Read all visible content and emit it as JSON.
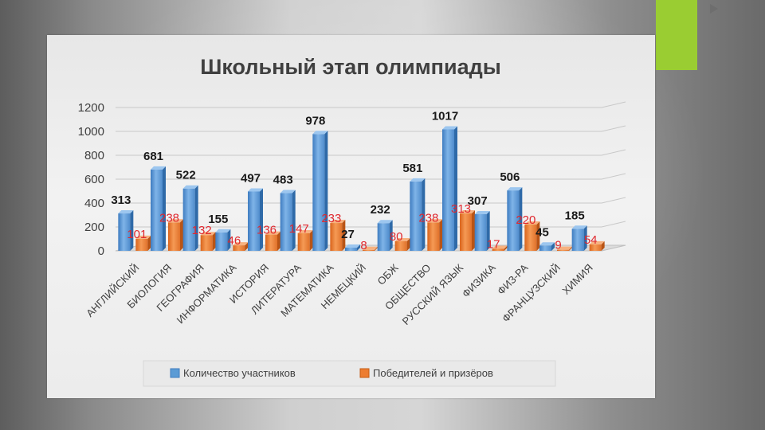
{
  "chart_data": {
    "type": "bar",
    "title": "Школьный этап олимпиады",
    "categories": [
      "АНГЛИЙСКИЙ",
      "БИОЛОГИЯ",
      "ГЕОГРАФИЯ",
      "ИНФОРМАТИКА",
      "ИСТОРИЯ",
      "ЛИТЕРАТУРА",
      "МАТЕМАТИКА",
      "НЕМЕЦКИЙ",
      "ОБЖ",
      "ОБЩЕСТВО",
      "РУССКИЙ ЯЗЫК",
      "ФИЗИКА",
      "ФИЗ-РА",
      "ФРАНЦУЗСКИЙ",
      "ХИМИЯ"
    ],
    "series": [
      {
        "name": "Количество участников",
        "color": "#5b9bd5",
        "label_color": "#1a1a1a",
        "values": [
          313,
          681,
          522,
          155,
          497,
          483,
          978,
          27,
          232,
          581,
          1017,
          307,
          506,
          45,
          185
        ]
      },
      {
        "name": "Победителей и призёров",
        "color": "#ed7d31",
        "label_color": "#e0282e",
        "values": [
          101,
          238,
          132,
          46,
          136,
          147,
          233,
          8,
          80,
          238,
          313,
          17,
          220,
          9,
          54
        ]
      }
    ],
    "yticks": [
      "0",
      "200",
      "400",
      "600",
      "800",
      "1000",
      "1200"
    ],
    "ylim": [
      0,
      1200
    ],
    "legend_position": "bottom"
  },
  "colors": {
    "accent": "#9acd32",
    "participants": "#5b9bd5",
    "winners": "#ed7d31"
  }
}
